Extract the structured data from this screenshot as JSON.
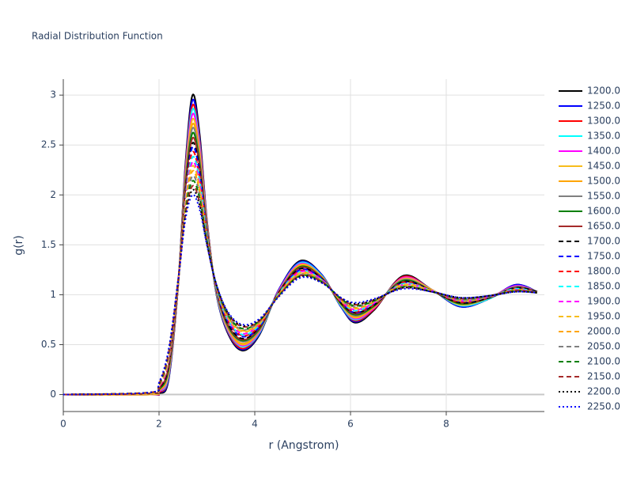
{
  "chart_data": {
    "type": "line",
    "title": "Radial Distribution Function",
    "x_label": "r (Angstrom)",
    "y_label": "g(r)",
    "xlim": [
      0,
      10.05
    ],
    "ylim": [
      -0.17,
      3.16
    ],
    "xticks": [
      0,
      2,
      4,
      6,
      8
    ],
    "yticks": [
      0,
      0.5,
      1,
      1.5,
      2,
      2.5,
      3
    ],
    "grid": true,
    "x": [
      0,
      1.8,
      2.0,
      2.2,
      2.4,
      2.55,
      2.7,
      2.85,
      3.0,
      3.2,
      3.45,
      3.75,
      4.1,
      4.5,
      4.95,
      5.4,
      5.8,
      6.1,
      6.5,
      7.1,
      7.7,
      8.3,
      8.9,
      9.45,
      9.9
    ],
    "series": [
      {
        "name": "1200.0",
        "color": "#000000",
        "dash": "solid",
        "values": [
          0,
          0,
          0.01,
          0.15,
          1.1,
          2.3,
          3.0,
          2.6,
          1.75,
          1.0,
          0.6,
          0.44,
          0.6,
          1.05,
          1.34,
          1.2,
          0.88,
          0.72,
          0.85,
          1.19,
          1.05,
          0.88,
          0.96,
          1.1,
          1.03
        ]
      },
      {
        "name": "1250.0",
        "color": "#0000ff",
        "dash": "solid",
        "values": [
          0,
          0,
          0.02,
          0.16,
          1.1,
          2.27,
          2.95,
          2.56,
          1.74,
          1.0,
          0.61,
          0.45,
          0.61,
          1.05,
          1.33,
          1.2,
          0.88,
          0.73,
          0.86,
          1.18,
          1.05,
          0.88,
          0.96,
          1.1,
          1.03
        ]
      },
      {
        "name": "1300.0",
        "color": "#ff0000",
        "dash": "solid",
        "values": [
          0,
          0,
          0.02,
          0.18,
          1.1,
          2.25,
          2.9,
          2.53,
          1.73,
          1.01,
          0.62,
          0.46,
          0.62,
          1.04,
          1.32,
          1.19,
          0.89,
          0.74,
          0.86,
          1.18,
          1.05,
          0.89,
          0.96,
          1.09,
          1.03
        ]
      },
      {
        "name": "1350.0",
        "color": "#00ffff",
        "dash": "solid",
        "values": [
          0,
          0,
          0.03,
          0.19,
          1.11,
          2.22,
          2.86,
          2.49,
          1.71,
          1.01,
          0.63,
          0.48,
          0.62,
          1.04,
          1.32,
          1.19,
          0.89,
          0.75,
          0.87,
          1.17,
          1.05,
          0.89,
          0.96,
          1.09,
          1.03
        ]
      },
      {
        "name": "1400.0",
        "color": "#ff00ff",
        "dash": "solid",
        "values": [
          0,
          0,
          0.03,
          0.21,
          1.11,
          2.2,
          2.81,
          2.46,
          1.7,
          1.02,
          0.64,
          0.49,
          0.63,
          1.04,
          1.31,
          1.18,
          0.9,
          0.76,
          0.87,
          1.17,
          1.05,
          0.9,
          0.97,
          1.09,
          1.03
        ]
      },
      {
        "name": "1450.0",
        "color": "#f7bd1c",
        "dash": "solid",
        "values": [
          0,
          0,
          0.04,
          0.22,
          1.11,
          2.17,
          2.76,
          2.42,
          1.69,
          1.02,
          0.65,
          0.5,
          0.64,
          1.03,
          1.3,
          1.18,
          0.9,
          0.77,
          0.88,
          1.16,
          1.05,
          0.9,
          0.97,
          1.08,
          1.03
        ]
      },
      {
        "name": "1500.0",
        "color": "#ffa500",
        "dash": "solid",
        "values": [
          0,
          0.01,
          0.04,
          0.24,
          1.11,
          2.14,
          2.71,
          2.39,
          1.68,
          1.03,
          0.66,
          0.51,
          0.65,
          1.03,
          1.29,
          1.18,
          0.91,
          0.78,
          0.88,
          1.15,
          1.04,
          0.91,
          0.97,
          1.08,
          1.03
        ]
      },
      {
        "name": "1550.0",
        "color": "#808080",
        "dash": "solid",
        "values": [
          0,
          0.01,
          0.05,
          0.25,
          1.12,
          2.12,
          2.67,
          2.35,
          1.67,
          1.03,
          0.67,
          0.53,
          0.65,
          1.03,
          1.28,
          1.17,
          0.91,
          0.79,
          0.89,
          1.15,
          1.04,
          0.91,
          0.97,
          1.08,
          1.03
        ]
      },
      {
        "name": "1600.0",
        "color": "#008000",
        "dash": "solid",
        "values": [
          0,
          0.01,
          0.05,
          0.26,
          1.12,
          2.09,
          2.62,
          2.31,
          1.65,
          1.04,
          0.68,
          0.54,
          0.66,
          1.02,
          1.28,
          1.17,
          0.91,
          0.8,
          0.89,
          1.14,
          1.04,
          0.91,
          0.97,
          1.07,
          1.03
        ]
      },
      {
        "name": "1650.0",
        "color": "#a52a2a",
        "dash": "solid",
        "values": [
          0,
          0.01,
          0.06,
          0.28,
          1.12,
          2.06,
          2.57,
          2.28,
          1.64,
          1.04,
          0.69,
          0.55,
          0.67,
          1.02,
          1.27,
          1.17,
          0.92,
          0.81,
          0.9,
          1.13,
          1.04,
          0.92,
          0.97,
          1.07,
          1.03
        ]
      },
      {
        "name": "1700.0",
        "color": "#000000",
        "dash": "dash",
        "values": [
          0,
          0.01,
          0.06,
          0.29,
          1.12,
          2.04,
          2.52,
          2.24,
          1.63,
          1.05,
          0.7,
          0.56,
          0.68,
          1.02,
          1.26,
          1.16,
          0.92,
          0.82,
          0.9,
          1.13,
          1.04,
          0.92,
          0.97,
          1.07,
          1.03
        ]
      },
      {
        "name": "1750.0",
        "color": "#0000ff",
        "dash": "dash",
        "values": [
          0,
          0.01,
          0.07,
          0.31,
          1.13,
          2.01,
          2.48,
          2.21,
          1.62,
          1.05,
          0.72,
          0.58,
          0.68,
          1.01,
          1.25,
          1.16,
          0.93,
          0.82,
          0.91,
          1.12,
          1.04,
          0.93,
          0.98,
          1.06,
          1.02
        ]
      },
      {
        "name": "1800.0",
        "color": "#ff0000",
        "dash": "dash",
        "values": [
          0,
          0.01,
          0.07,
          0.32,
          1.13,
          1.99,
          2.43,
          2.17,
          1.61,
          1.06,
          0.73,
          0.59,
          0.69,
          1.01,
          1.24,
          1.15,
          0.93,
          0.83,
          0.91,
          1.12,
          1.04,
          0.93,
          0.98,
          1.06,
          1.02
        ]
      },
      {
        "name": "1850.0",
        "color": "#00ffff",
        "dash": "dash",
        "values": [
          0,
          0.01,
          0.08,
          0.34,
          1.13,
          1.96,
          2.38,
          2.14,
          1.6,
          1.06,
          0.74,
          0.6,
          0.7,
          1.01,
          1.23,
          1.15,
          0.94,
          0.84,
          0.92,
          1.11,
          1.04,
          0.94,
          0.98,
          1.06,
          1.02
        ]
      },
      {
        "name": "1900.0",
        "color": "#ff00ff",
        "dash": "dash",
        "values": [
          0,
          0.01,
          0.08,
          0.35,
          1.13,
          1.93,
          2.33,
          2.1,
          1.58,
          1.07,
          0.75,
          0.61,
          0.71,
          1.0,
          1.23,
          1.15,
          0.94,
          0.85,
          0.92,
          1.1,
          1.04,
          0.94,
          0.98,
          1.05,
          1.02
        ]
      },
      {
        "name": "1950.0",
        "color": "#f7bd1c",
        "dash": "dash",
        "values": [
          0,
          0.01,
          0.09,
          0.36,
          1.14,
          1.91,
          2.29,
          2.06,
          1.57,
          1.07,
          0.76,
          0.63,
          0.71,
          1.0,
          1.22,
          1.14,
          0.94,
          0.86,
          0.93,
          1.1,
          1.04,
          0.94,
          0.98,
          1.05,
          1.02
        ]
      },
      {
        "name": "2000.0",
        "color": "#ffa500",
        "dash": "dash",
        "values": [
          0,
          0.02,
          0.09,
          0.38,
          1.14,
          1.88,
          2.24,
          2.03,
          1.56,
          1.08,
          0.77,
          0.64,
          0.72,
          1.0,
          1.21,
          1.14,
          0.95,
          0.87,
          0.93,
          1.09,
          1.03,
          0.95,
          0.98,
          1.05,
          1.02
        ]
      },
      {
        "name": "2050.0",
        "color": "#808080",
        "dash": "dash",
        "values": [
          0,
          0.02,
          0.1,
          0.39,
          1.14,
          1.85,
          2.19,
          1.99,
          1.55,
          1.08,
          0.78,
          0.65,
          0.73,
          0.99,
          1.2,
          1.14,
          0.95,
          0.88,
          0.94,
          1.08,
          1.03,
          0.95,
          0.98,
          1.04,
          1.02
        ]
      },
      {
        "name": "2100.0",
        "color": "#008000",
        "dash": "dash",
        "values": [
          0,
          0.02,
          0.1,
          0.41,
          1.14,
          1.83,
          2.14,
          1.96,
          1.54,
          1.09,
          0.79,
          0.66,
          0.74,
          0.99,
          1.19,
          1.13,
          0.96,
          0.89,
          0.94,
          1.08,
          1.03,
          0.96,
          0.99,
          1.04,
          1.02
        ]
      },
      {
        "name": "2150.0",
        "color": "#a52a2a",
        "dash": "dash",
        "values": [
          0,
          0.02,
          0.11,
          0.42,
          1.15,
          1.8,
          2.09,
          1.92,
          1.52,
          1.09,
          0.8,
          0.68,
          0.74,
          0.99,
          1.19,
          1.13,
          0.96,
          0.9,
          0.95,
          1.07,
          1.03,
          0.96,
          0.99,
          1.04,
          1.02
        ]
      },
      {
        "name": "2200.0",
        "color": "#000000",
        "dash": "dot",
        "values": [
          0,
          0.02,
          0.11,
          0.44,
          1.15,
          1.78,
          2.05,
          1.89,
          1.51,
          1.1,
          0.81,
          0.69,
          0.75,
          0.98,
          1.18,
          1.12,
          0.97,
          0.91,
          0.95,
          1.07,
          1.03,
          0.97,
          0.99,
          1.03,
          1.02
        ]
      },
      {
        "name": "2250.0",
        "color": "#0000ff",
        "dash": "dot",
        "values": [
          0,
          0.02,
          0.12,
          0.45,
          1.15,
          1.75,
          2.0,
          1.85,
          1.5,
          1.1,
          0.82,
          0.7,
          0.76,
          0.98,
          1.17,
          1.12,
          0.97,
          0.92,
          0.96,
          1.06,
          1.03,
          0.97,
          0.99,
          1.03,
          1.02
        ]
      }
    ]
  }
}
